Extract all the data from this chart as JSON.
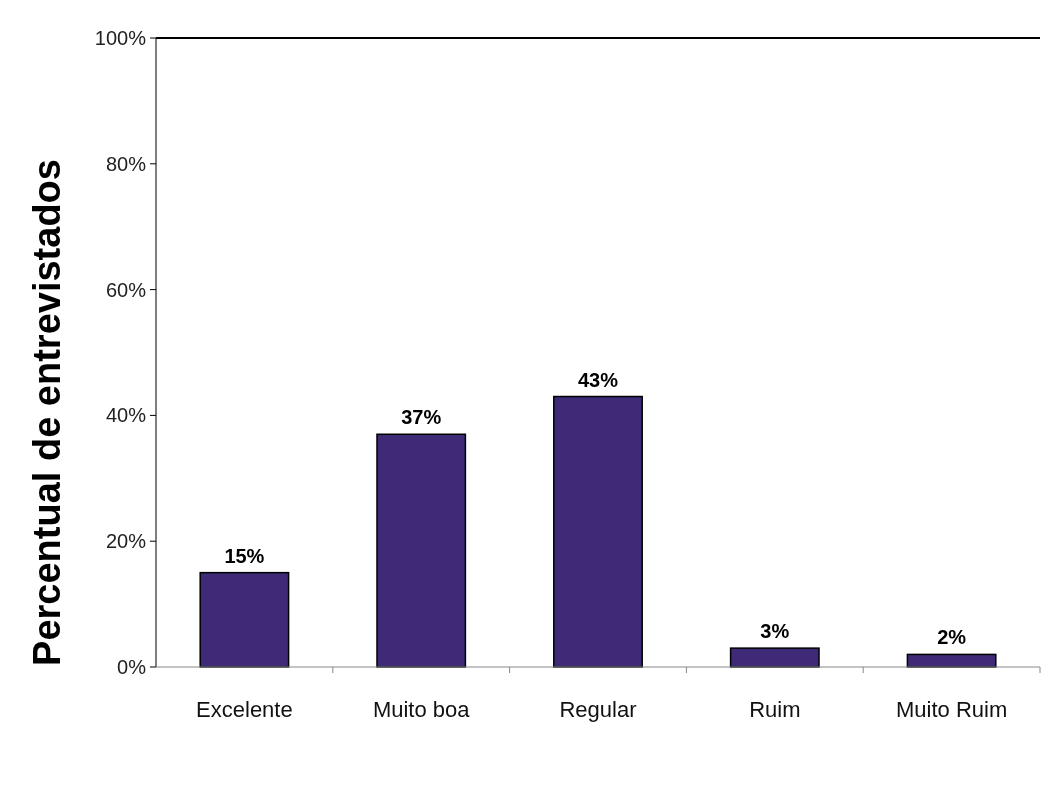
{
  "chart_data": {
    "type": "bar",
    "ylabel": "Percentual de entrevistados",
    "categories": [
      "Excelente",
      "Muito boa",
      "Regular",
      "Ruim",
      "Muito Ruim"
    ],
    "values": [
      15,
      37,
      43,
      3,
      2
    ],
    "color": "#3f2a78",
    "data_labels": true,
    "value_labels": [
      "15%",
      "37%",
      "43%",
      "3%",
      "2%"
    ],
    "ylim": [
      0,
      100
    ],
    "yticks": [
      {
        "value": 0,
        "label": "0%"
      },
      {
        "value": 20,
        "label": "20%"
      },
      {
        "value": 40,
        "label": "40%"
      },
      {
        "value": 60,
        "label": "60%"
      },
      {
        "value": 80,
        "label": "80%"
      },
      {
        "value": 100,
        "label": "100%"
      }
    ],
    "grid": false
  }
}
